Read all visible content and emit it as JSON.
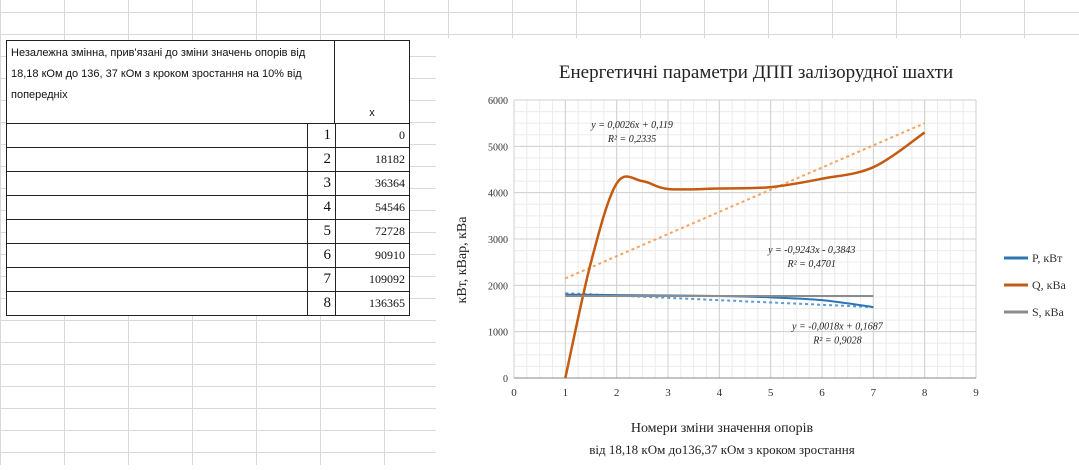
{
  "table": {
    "header_text": "Незалежна змінна, прив'язані до зміни значень опорів від 18,18 кОм до 136, 37 кОм з кроком зростання на 10% від попередніх",
    "header_x": "x",
    "rows": [
      {
        "idx": "1",
        "x": "0"
      },
      {
        "idx": "2",
        "x": "18182"
      },
      {
        "idx": "3",
        "x": "36364"
      },
      {
        "idx": "4",
        "x": "54546"
      },
      {
        "idx": "5",
        "x": "72728"
      },
      {
        "idx": "6",
        "x": "90910"
      },
      {
        "idx": "7",
        "x": "109092"
      },
      {
        "idx": "8",
        "x": "136365"
      }
    ]
  },
  "chart_data": {
    "type": "line",
    "title": "Енергетичні параметри ДПП залізорудної шахти",
    "xlabel_line1": "Номери зміни значення опорів",
    "xlabel_line2": "від 18,18 кОм до136,37 кОм з кроком зростання",
    "ylabel": "кВт, кВар, кВа",
    "xlim": [
      0,
      9
    ],
    "ylim": [
      0,
      6000
    ],
    "x_ticks": [
      0,
      1,
      2,
      3,
      4,
      5,
      6,
      7,
      8,
      9
    ],
    "y_ticks": [
      0,
      1000,
      2000,
      3000,
      4000,
      5000,
      6000
    ],
    "grid": true,
    "legend_position": "right",
    "series": [
      {
        "name": "P, кВт",
        "color": "#2e75b6",
        "x": [
          1,
          2,
          3,
          4,
          5,
          6,
          7
        ],
        "y": [
          1800,
          1790,
          1780,
          1770,
          1740,
          1680,
          1530
        ]
      },
      {
        "name": "Q, кВа",
        "color": "#c55a11",
        "x": [
          1,
          1.5,
          2,
          2.5,
          3,
          4,
          5,
          6,
          7,
          8
        ],
        "y": [
          0,
          2500,
          4200,
          4250,
          4080,
          4090,
          4120,
          4300,
          4550,
          5300
        ]
      },
      {
        "name": "S, кВа",
        "color": "#8c8c8c",
        "x": [
          1,
          2,
          3,
          4,
          5,
          6,
          7
        ],
        "y": [
          1770,
          1770,
          1770,
          1770,
          1770,
          1770,
          1770
        ]
      }
    ],
    "trendlines": [
      {
        "series": "Q, кВа",
        "color": "#f4a460",
        "x": [
          1,
          8
        ],
        "y": [
          2150,
          5500
        ]
      },
      {
        "series": "P, кВт",
        "color": "#5b9bd5",
        "x": [
          1,
          7
        ],
        "y": [
          1830,
          1530
        ]
      }
    ],
    "annotations": [
      {
        "line1": "y = 0,0026x + 0,119",
        "line2": "R² = 0,2335",
        "x": 2.3,
        "y": 5400
      },
      {
        "line1": "y = -0,9243x - 0,3843",
        "line2": "R² = 0,4701",
        "x": 5.8,
        "y": 2700
      },
      {
        "line1": "y = -0,0018x + 0,1687",
        "line2": "R² = 0,9028",
        "x": 6.3,
        "y": 1050
      }
    ]
  }
}
